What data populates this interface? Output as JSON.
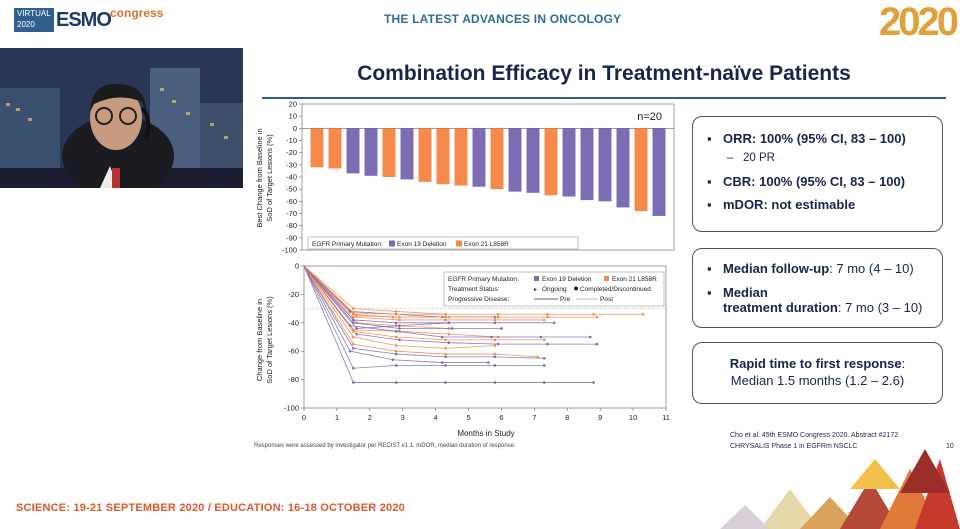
{
  "header": {
    "logo_virtual": "VIRTUAL",
    "logo_year_small": "2020",
    "logo_esmo": "ESMO",
    "logo_congress": "congress",
    "tagline": "THE LATEST ADVANCES IN ONCOLOGY",
    "year_big": "2020"
  },
  "slide": {
    "title": "Combination Efficacy in Treatment-naïve Patients",
    "footnote": "Responses were assessed by investigator per RECIST v1.1. mDOR, median duration of response.",
    "citation_line1": "Cho et al. 45th ESMO Congress 2020. Abstract #2172",
    "citation_line2": "CHRYSALIS Phase 1 in EGFRm NSCLC",
    "page_number": "10"
  },
  "boxes": {
    "efficacy": {
      "orr": "ORR: 100% (95% CI, 83 – 100)",
      "orr_sub": "20 PR",
      "cbr": "CBR: 100% (95% CI, 83 – 100)",
      "mdor": "mDOR: not estimable"
    },
    "followup": {
      "fu_label": "Median follow-up",
      "fu_value": ": 7 mo (4 – 10)",
      "td_label_1": "Median",
      "td_label_2": "treatment duration",
      "td_value": ": 7 mo (3 – 10)"
    },
    "response": {
      "label": "Rapid time to first response",
      "colon": ":",
      "value": "Median 1.5 months (1.2 – 2.6)"
    }
  },
  "footer": {
    "dates": "SCIENCE: 19-21 SEPTEMBER 2020   /   EDUCATION: 16-18 OCTOBER 2020"
  },
  "colors": {
    "exon19": "#7b6cb3",
    "exon21": "#f58a4b",
    "navy": "#15264a"
  },
  "chart_data": [
    {
      "type": "bar",
      "title": "",
      "annotation": "n=20",
      "ylabel_1": "Best Change from Baseline in",
      "ylabel_2": "SoD of Target Lesions (%)",
      "ylim": [
        -100,
        20
      ],
      "yticks": [
        20,
        10,
        0,
        -10,
        -20,
        -30,
        -40,
        -50,
        -60,
        -70,
        -80,
        -90,
        -100
      ],
      "legend_title": "EGFR Primary Mutation:",
      "legend": [
        "Exon 19 Deletion",
        "Exon 21 L858R"
      ],
      "values": [
        -32,
        -33,
        -37,
        -39,
        -40,
        -42,
        -44,
        -46,
        -47,
        -48,
        -50,
        -52,
        -53,
        -55,
        -56,
        -59,
        -60,
        -65,
        -68,
        -72
      ],
      "groups": [
        1,
        1,
        0,
        0,
        1,
        0,
        1,
        1,
        1,
        0,
        1,
        0,
        0,
        1,
        0,
        0,
        0,
        0,
        1,
        0
      ]
    },
    {
      "type": "line",
      "ylabel_1": "Change from Baseline in",
      "ylabel_2": "SoD of Target Lesions (%)",
      "xlabel": "Months in Study",
      "xlim": [
        0,
        11
      ],
      "ylim": [
        -100,
        0
      ],
      "xticks": [
        0,
        1,
        2,
        3,
        4,
        5,
        6,
        7,
        8,
        9,
        10,
        11
      ],
      "yticks": [
        0,
        -20,
        -40,
        -60,
        -80,
        -100
      ],
      "legend_rows": [
        {
          "label": "EGFR Primary Mutation:",
          "a": "Exon 19 Deletion",
          "b": "Exon 21 L858R"
        },
        {
          "label": "Treatment Status:",
          "a": "Ongoing",
          "b": "Completed/Discontinued"
        },
        {
          "label": "Progressive Disease:",
          "a": "Pre",
          "b": "Post"
        }
      ],
      "series": [
        {
          "group": 0,
          "x": [
            0,
            1.5,
            2.8,
            4.3,
            5.8,
            7.3,
            8.8
          ],
          "y": [
            0,
            -82,
            -82,
            -82,
            -82,
            -82,
            -82
          ]
        },
        {
          "group": 0,
          "x": [
            0,
            1.5,
            2.8,
            4.3,
            5.8,
            7.3
          ],
          "y": [
            0,
            -72,
            -70,
            -70,
            -70,
            -70
          ]
        },
        {
          "group": 0,
          "x": [
            0,
            1.5,
            2.8,
            4.3,
            5.8,
            7.3
          ],
          "y": [
            0,
            -58,
            -62,
            -64,
            -64,
            -65
          ]
        },
        {
          "group": 1,
          "x": [
            0,
            1.5,
            2.8,
            4.3,
            5.8
          ],
          "y": [
            0,
            -50,
            -56,
            -58,
            -56
          ]
        },
        {
          "group": 0,
          "x": [
            0,
            1.6,
            2.9,
            4.4,
            5.9,
            7.4,
            8.9
          ],
          "y": [
            0,
            -48,
            -52,
            -54,
            -55,
            -55,
            -55
          ]
        },
        {
          "group": 1,
          "x": [
            0,
            1.5,
            2.9,
            4.4,
            5.9
          ],
          "y": [
            0,
            -45,
            -46,
            -48,
            -50
          ]
        },
        {
          "group": 0,
          "x": [
            0,
            1.4,
            2.8,
            4.2,
            5.7,
            7.2,
            8.7
          ],
          "y": [
            0,
            -42,
            -46,
            -50,
            -50,
            -50,
            -50
          ]
        },
        {
          "group": 1,
          "x": [
            0,
            1.6,
            2.8,
            4.4
          ],
          "y": [
            0,
            -40,
            -42,
            -44
          ]
        },
        {
          "group": 0,
          "x": [
            0,
            1.5,
            2.8,
            4.4,
            5.8,
            7.6
          ],
          "y": [
            0,
            -38,
            -40,
            -40,
            -40,
            -40
          ]
        },
        {
          "group": 1,
          "x": [
            0,
            1.5,
            2.9,
            4.3,
            5.8,
            7.3
          ],
          "y": [
            0,
            -36,
            -38,
            -38,
            -38,
            -38
          ]
        },
        {
          "group": 1,
          "x": [
            0,
            1.5,
            2.7,
            4.3,
            5.8
          ],
          "y": [
            0,
            -34,
            -36,
            -36,
            -36
          ]
        },
        {
          "group": 0,
          "x": [
            0,
            1.4,
            2.8,
            4.2,
            5.8
          ],
          "y": [
            0,
            -32,
            -34,
            -36,
            -36
          ]
        },
        {
          "group": 1,
          "x": [
            0,
            1.5,
            2.8,
            4.3,
            5.9,
            7.4,
            8.8,
            10.3
          ],
          "y": [
            0,
            -33,
            -34,
            -34,
            -34,
            -34,
            -34,
            -34
          ]
        },
        {
          "group": 1,
          "x": [
            0,
            1.6,
            2.9,
            4.4,
            5.9,
            7.4,
            8.9
          ],
          "y": [
            0,
            -35,
            -36,
            -36,
            -36,
            -36,
            -36
          ]
        },
        {
          "group": 0,
          "x": [
            0,
            1.5,
            2.9,
            4.5,
            6.0
          ],
          "y": [
            0,
            -40,
            -44,
            -44,
            -44
          ]
        },
        {
          "group": 1,
          "x": [
            0,
            1.5,
            2.8,
            4.3
          ],
          "y": [
            0,
            -30,
            -32,
            -34
          ]
        },
        {
          "group": 1,
          "x": [
            0,
            1.5,
            2.8,
            4.3,
            5.8,
            7.3
          ],
          "y": [
            0,
            -46,
            -50,
            -52,
            -52,
            -52
          ]
        },
        {
          "group": 0,
          "x": [
            0,
            1.6,
            2.9,
            4.4
          ],
          "y": [
            0,
            -44,
            -42,
            -40
          ]
        },
        {
          "group": 1,
          "x": [
            0,
            1.5,
            2.8,
            4.3,
            5.8,
            7.1
          ],
          "y": [
            0,
            -55,
            -60,
            -62,
            -62,
            -64
          ]
        },
        {
          "group": 0,
          "x": [
            0,
            1.4,
            2.7,
            4.2,
            5.6
          ],
          "y": [
            0,
            -60,
            -66,
            -68,
            -68
          ]
        }
      ]
    }
  ]
}
